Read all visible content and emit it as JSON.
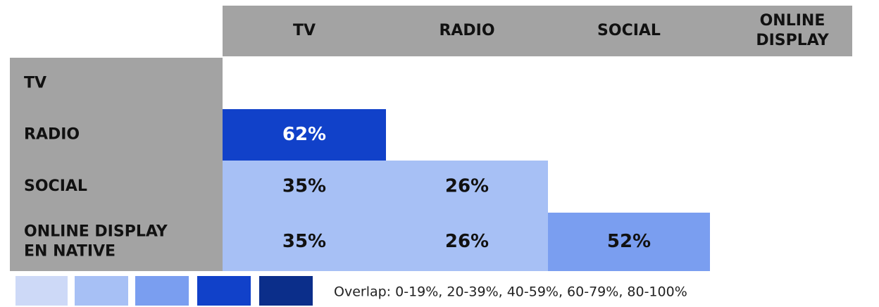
{
  "table": {
    "columns": [
      [
        "TV"
      ],
      [
        "RADIO"
      ],
      [
        "SOCIAL"
      ],
      [
        "ONLINE",
        "DISPLAY"
      ]
    ],
    "rows": [
      {
        "label": [
          "TV"
        ],
        "cells": [],
        "colors": []
      },
      {
        "label": [
          "RADIO"
        ],
        "cells": [
          "62%"
        ],
        "colors": [
          "#1141c9"
        ]
      },
      {
        "label": [
          "SOCIAL"
        ],
        "cells": [
          "35%",
          "26%"
        ],
        "colors": [
          "#a7c0f5",
          "#a7c0f5"
        ]
      },
      {
        "label": [
          "ONLINE DISPLAY",
          "EN NATIVE"
        ],
        "cells": [
          "35%",
          "26%",
          "52%"
        ],
        "colors": [
          "#a7c0f5",
          "#a7c0f5",
          "#7a9ef0"
        ]
      }
    ],
    "header_color": "#a3a3a3",
    "legend": {
      "colors": [
        "#cdd9f7",
        "#a7c0f5",
        "#7a9ef0",
        "#1141c9",
        "#0b2e8a"
      ],
      "label": "Overlap: 0-19%, 20-39%, 40-59%, 60-79%, 80-100%"
    }
  }
}
